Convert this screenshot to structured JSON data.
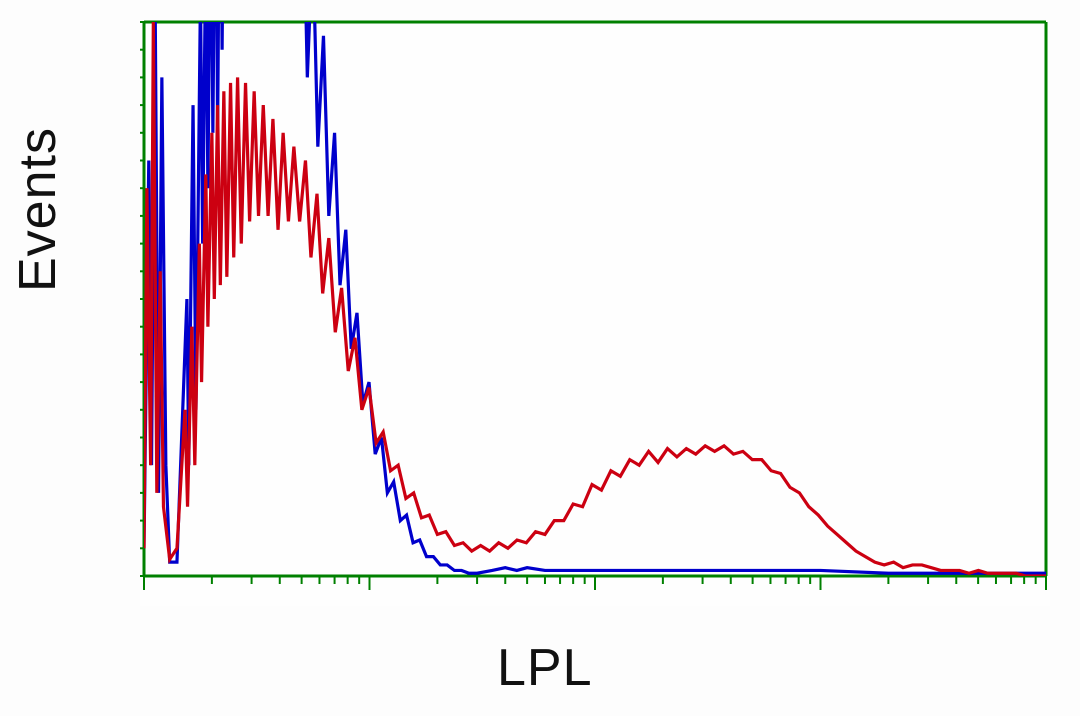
{
  "chart": {
    "type": "histogram-line",
    "xlabel": "LPL",
    "ylabel": "Events",
    "label_fontsize": 52,
    "label_color": "#111111",
    "background_color": "#ffffff",
    "plot_bg": "#fefefe",
    "frame_color": "#008000",
    "frame_width": 3,
    "tick_color": "#008000",
    "tick_width": 2,
    "tick_len_major": 14,
    "tick_len_minor": 8,
    "xscale": "log",
    "xlim": [
      1,
      10000
    ],
    "ylim": [
      0,
      200
    ],
    "x_decade_ticks": [
      1,
      10,
      100,
      1000,
      10000
    ],
    "y_major_ticks": [
      0,
      50,
      100,
      150,
      200
    ],
    "y_minor_step": 10,
    "series": {
      "control_blue": {
        "color": "#0000cc",
        "line_width": 3.2,
        "data": [
          [
            1.0,
            10
          ],
          [
            1.05,
            150
          ],
          [
            1.08,
            40
          ],
          [
            1.12,
            210
          ],
          [
            1.16,
            30
          ],
          [
            1.2,
            180
          ],
          [
            1.25,
            40
          ],
          [
            1.3,
            5
          ],
          [
            1.4,
            5
          ],
          [
            1.55,
            100
          ],
          [
            1.58,
            40
          ],
          [
            1.65,
            170
          ],
          [
            1.7,
            60
          ],
          [
            1.78,
            210
          ],
          [
            1.82,
            120
          ],
          [
            1.88,
            230
          ],
          [
            1.92,
            140
          ],
          [
            1.98,
            260
          ],
          [
            2.02,
            160
          ],
          [
            2.08,
            280
          ],
          [
            2.12,
            160
          ],
          [
            2.18,
            295
          ],
          [
            2.22,
            190
          ],
          [
            2.28,
            300
          ],
          [
            2.33,
            200
          ],
          [
            2.4,
            310
          ],
          [
            2.45,
            205
          ],
          [
            2.52,
            320
          ],
          [
            2.58,
            215
          ],
          [
            2.65,
            320
          ],
          [
            2.72,
            230
          ],
          [
            2.8,
            320
          ],
          [
            2.88,
            240
          ],
          [
            2.96,
            320
          ],
          [
            3.05,
            240
          ],
          [
            3.15,
            320
          ],
          [
            3.25,
            235
          ],
          [
            3.36,
            320
          ],
          [
            3.48,
            230
          ],
          [
            3.6,
            320
          ],
          [
            3.74,
            225
          ],
          [
            3.88,
            320
          ],
          [
            4.05,
            220
          ],
          [
            4.22,
            320
          ],
          [
            4.4,
            240
          ],
          [
            4.6,
            290
          ],
          [
            4.8,
            200
          ],
          [
            5.05,
            260
          ],
          [
            5.3,
            180
          ],
          [
            5.6,
            230
          ],
          [
            5.9,
            155
          ],
          [
            6.25,
            195
          ],
          [
            6.6,
            130
          ],
          [
            7.0,
            160
          ],
          [
            7.4,
            105
          ],
          [
            7.85,
            125
          ],
          [
            8.3,
            82
          ],
          [
            8.8,
            95
          ],
          [
            9.35,
            62
          ],
          [
            9.95,
            70
          ],
          [
            10.6,
            44
          ],
          [
            11.3,
            50
          ],
          [
            12.0,
            30
          ],
          [
            12.8,
            34
          ],
          [
            13.7,
            20
          ],
          [
            14.6,
            22
          ],
          [
            15.6,
            12
          ],
          [
            16.7,
            13
          ],
          [
            17.9,
            7
          ],
          [
            19.2,
            7
          ],
          [
            20.6,
            4
          ],
          [
            22.1,
            4
          ],
          [
            23.8,
            2
          ],
          [
            25.6,
            2
          ],
          [
            27.6,
            1
          ],
          [
            30.0,
            1
          ],
          [
            35,
            2
          ],
          [
            40,
            3
          ],
          [
            45,
            2
          ],
          [
            50,
            3
          ],
          [
            60,
            2
          ],
          [
            80,
            2
          ],
          [
            100,
            2
          ],
          [
            150,
            2
          ],
          [
            200,
            2
          ],
          [
            300,
            2
          ],
          [
            500,
            2
          ],
          [
            1000,
            2
          ],
          [
            2000,
            1
          ],
          [
            4000,
            1
          ],
          [
            7000,
            1
          ],
          [
            10000,
            1
          ]
        ]
      },
      "sample_red": {
        "color": "#cc0011",
        "line_width": 3.2,
        "data": [
          [
            1.0,
            10
          ],
          [
            1.03,
            140
          ],
          [
            1.07,
            40
          ],
          [
            1.1,
            200
          ],
          [
            1.14,
            30
          ],
          [
            1.18,
            110
          ],
          [
            1.22,
            25
          ],
          [
            1.3,
            6
          ],
          [
            1.4,
            10
          ],
          [
            1.52,
            60
          ],
          [
            1.56,
            25
          ],
          [
            1.63,
            90
          ],
          [
            1.68,
            40
          ],
          [
            1.76,
            120
          ],
          [
            1.8,
            70
          ],
          [
            1.88,
            145
          ],
          [
            1.92,
            90
          ],
          [
            2.0,
            160
          ],
          [
            2.05,
            100
          ],
          [
            2.12,
            170
          ],
          [
            2.18,
            105
          ],
          [
            2.26,
            175
          ],
          [
            2.33,
            108
          ],
          [
            2.42,
            178
          ],
          [
            2.5,
            115
          ],
          [
            2.6,
            180
          ],
          [
            2.7,
            120
          ],
          [
            2.82,
            178
          ],
          [
            2.94,
            128
          ],
          [
            3.08,
            175
          ],
          [
            3.22,
            130
          ],
          [
            3.38,
            170
          ],
          [
            3.55,
            130
          ],
          [
            3.73,
            165
          ],
          [
            3.93,
            125
          ],
          [
            4.14,
            160
          ],
          [
            4.37,
            128
          ],
          [
            4.62,
            155
          ],
          [
            4.9,
            128
          ],
          [
            5.2,
            150
          ],
          [
            5.5,
            115
          ],
          [
            5.85,
            138
          ],
          [
            6.2,
            102
          ],
          [
            6.6,
            122
          ],
          [
            7.05,
            88
          ],
          [
            7.52,
            104
          ],
          [
            8.05,
            74
          ],
          [
            8.62,
            86
          ],
          [
            9.25,
            60
          ],
          [
            9.95,
            68
          ],
          [
            10.7,
            48
          ],
          [
            11.5,
            52
          ],
          [
            12.4,
            38
          ],
          [
            13.4,
            40
          ],
          [
            14.5,
            28
          ],
          [
            15.7,
            30
          ],
          [
            17.0,
            21
          ],
          [
            18.4,
            22
          ],
          [
            20.0,
            15
          ],
          [
            21.8,
            16
          ],
          [
            23.8,
            11
          ],
          [
            26.0,
            12
          ],
          [
            28.4,
            9
          ],
          [
            31.1,
            11
          ],
          [
            34.1,
            9
          ],
          [
            37.4,
            12
          ],
          [
            41.1,
            10
          ],
          [
            45.1,
            13
          ],
          [
            49.6,
            12
          ],
          [
            54.5,
            16
          ],
          [
            60.0,
            15
          ],
          [
            66.0,
            20
          ],
          [
            72.7,
            20
          ],
          [
            80.0,
            26
          ],
          [
            88.1,
            25
          ],
          [
            97.0,
            33
          ],
          [
            106.8,
            31
          ],
          [
            117.6,
            38
          ],
          [
            129.5,
            36
          ],
          [
            142.6,
            42
          ],
          [
            157.0,
            40
          ],
          [
            172.9,
            45
          ],
          [
            190.4,
            41
          ],
          [
            209.6,
            46
          ],
          [
            230.8,
            43
          ],
          [
            254.1,
            46
          ],
          [
            279.8,
            44
          ],
          [
            308.1,
            47
          ],
          [
            339.2,
            45
          ],
          [
            373.5,
            47
          ],
          [
            411.2,
            44
          ],
          [
            452.7,
            45
          ],
          [
            498.5,
            42
          ],
          [
            548.8,
            42
          ],
          [
            604.2,
            38
          ],
          [
            665.3,
            37
          ],
          [
            732.5,
            32
          ],
          [
            806.5,
            30
          ],
          [
            887.9,
            25
          ],
          [
            977.6,
            22
          ],
          [
            1076,
            18
          ],
          [
            1185,
            15
          ],
          [
            1304,
            12
          ],
          [
            1436,
            9
          ],
          [
            1581,
            7
          ],
          [
            1741,
            5
          ],
          [
            1916,
            4
          ],
          [
            2110,
            5
          ],
          [
            2323,
            3
          ],
          [
            2558,
            4
          ],
          [
            2816,
            4
          ],
          [
            3100,
            3
          ],
          [
            3413,
            2
          ],
          [
            3758,
            2
          ],
          [
            4137,
            2
          ],
          [
            4555,
            1
          ],
          [
            5015,
            2
          ],
          [
            5521,
            1
          ],
          [
            6079,
            1
          ],
          [
            6693,
            1
          ],
          [
            7368,
            1
          ],
          [
            8113,
            0
          ],
          [
            8932,
            0
          ],
          [
            9834,
            0
          ],
          [
            10000,
            0
          ]
        ]
      }
    }
  }
}
